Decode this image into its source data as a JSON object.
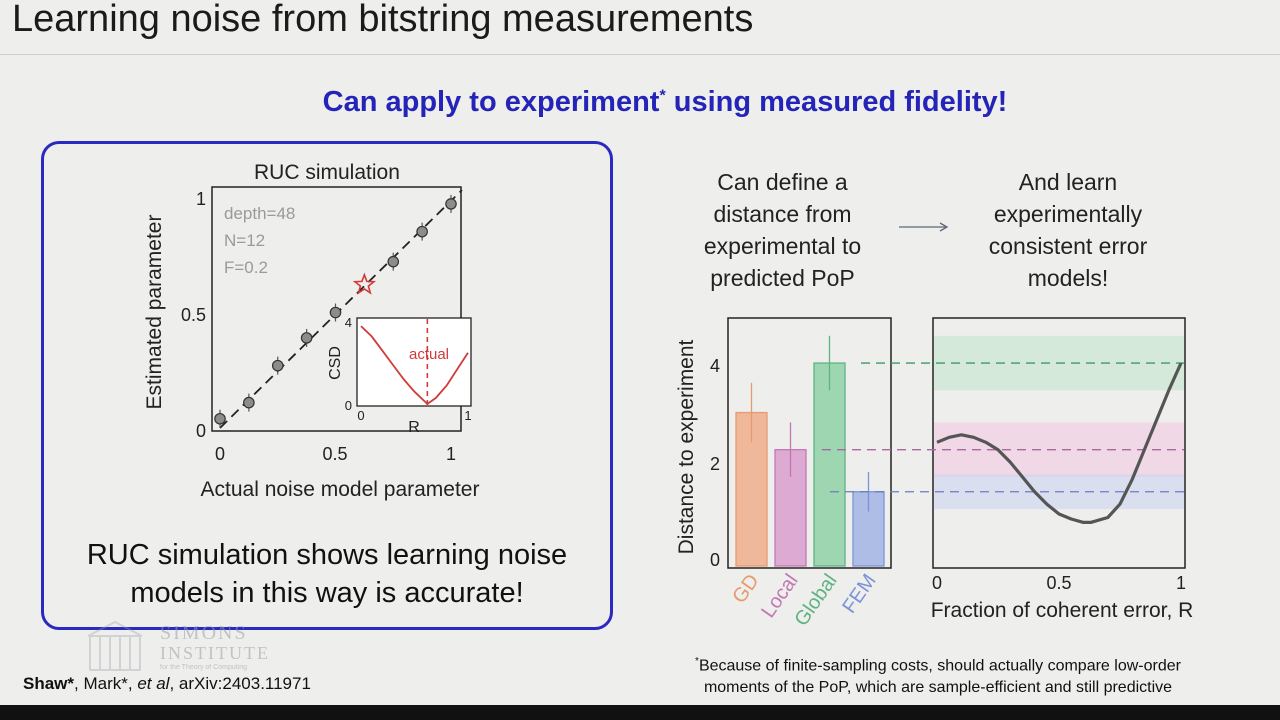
{
  "slide": {
    "title": "Learning noise from bitstring measurements",
    "subtitle_main": "Can apply to experiment",
    "subtitle_mark": "*",
    "subtitle_rest": " using measured fidelity!",
    "panel_caption_line1": "RUC simulation shows learning noise",
    "panel_caption_line2": "models in this way is accurate!",
    "left_text_line1": "Can define a",
    "left_text_line2": "distance from",
    "left_text_line3": "experimental to",
    "left_text_line4": "predicted PoP",
    "right_text_line1": "And learn",
    "right_text_line2": "experimentally",
    "right_text_line3": "consistent error",
    "right_text_line4": "models!",
    "citation_a": "Shaw*",
    "citation_b": ", Mark*, ",
    "citation_c": "et al",
    "citation_d": ", arXiv:2403.11971",
    "footnote_mark": "*",
    "footnote_line1": "Because of finite-sampling costs, should actually compare low-order",
    "footnote_line2": "moments of the PoP, which are sample-efficient and still predictive",
    "watermark_line1": "SIMONS",
    "watermark_line2": "INSTITUTE",
    "watermark_line3": "for the Theory of Computing"
  },
  "chart_data": [
    {
      "type": "scatter",
      "title": "RUC simulation",
      "xlabel": "Actual noise model parameter",
      "ylabel": "Estimated parameter",
      "xlim": [
        0,
        1
      ],
      "ylim": [
        0,
        1
      ],
      "xticks": [
        "0",
        "0.5",
        "1"
      ],
      "yticks": [
        "0",
        "0.5",
        "1"
      ],
      "annotations": [
        "depth=48",
        "N=12",
        "F=0.2"
      ],
      "x": [
        0,
        0.125,
        0.25,
        0.375,
        0.5,
        0.625,
        0.75,
        0.875,
        1.0
      ],
      "y": [
        0.04,
        0.11,
        0.27,
        0.39,
        0.5,
        0.62,
        0.72,
        0.85,
        0.97
      ],
      "highlight_point_index": 5,
      "reference_line": "y = x (dashed)",
      "inset": {
        "type": "line",
        "xlabel": "R",
        "ylabel": "CSD",
        "xticks": [
          "0",
          "1"
        ],
        "yticks": [
          "0",
          "4"
        ],
        "xlim": [
          0,
          1
        ],
        "ylim": [
          0,
          4
        ],
        "marker_label": "actual",
        "marker_x": 0.62,
        "x": [
          0,
          0.1,
          0.2,
          0.3,
          0.4,
          0.5,
          0.6,
          0.62,
          0.7,
          0.8,
          0.9,
          1.0
        ],
        "y": [
          3.8,
          3.3,
          2.6,
          1.9,
          1.2,
          0.6,
          0.1,
          0.0,
          0.3,
          0.9,
          1.7,
          2.5
        ]
      }
    },
    {
      "type": "bar",
      "ylabel": "Distance to experiment",
      "categories": [
        "GD",
        "Local",
        "Global",
        "FEM"
      ],
      "values": [
        3.1,
        2.35,
        4.1,
        1.5
      ],
      "errors": [
        0.6,
        0.55,
        0.55,
        0.4
      ],
      "colors": [
        "#f0b89a",
        "#dcaad2",
        "#9dd6b1",
        "#aebde6"
      ],
      "ylim": [
        0,
        4.6
      ],
      "yticks": [
        "0",
        "2",
        "4"
      ]
    },
    {
      "type": "line",
      "xlabel": "Fraction of coherent error, R",
      "xlim": [
        0,
        1
      ],
      "ylim": [
        0,
        4.6
      ],
      "xticks": [
        "0",
        "0.5",
        "1"
      ],
      "x": [
        0,
        0.05,
        0.1,
        0.15,
        0.2,
        0.25,
        0.3,
        0.35,
        0.4,
        0.45,
        0.5,
        0.55,
        0.6,
        0.63,
        0.7,
        0.75,
        0.8,
        0.85,
        0.9,
        0.95,
        1.0
      ],
      "y": [
        2.5,
        2.6,
        2.65,
        2.6,
        2.5,
        2.35,
        2.1,
        1.8,
        1.5,
        1.25,
        1.05,
        0.95,
        0.88,
        0.88,
        0.98,
        1.25,
        1.75,
        2.35,
        2.95,
        3.55,
        4.1
      ],
      "reference_levels": [
        4.1,
        2.35,
        1.5
      ],
      "reference_colors": [
        "#3c9a62",
        "#a86a9c",
        "#6a7dbf"
      ]
    }
  ]
}
